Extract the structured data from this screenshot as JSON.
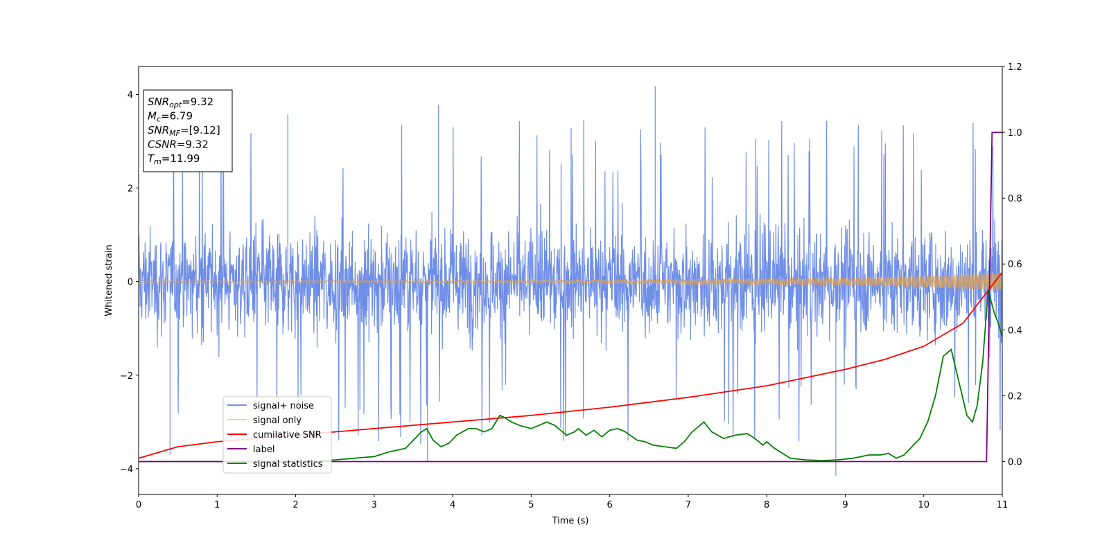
{
  "chart_data": {
    "type": "line",
    "title": "",
    "xlabel": "Time (s)",
    "ylabel": "Whitened strain",
    "xlim": [
      0,
      11
    ],
    "ylim_left": [
      -4.55,
      4.6
    ],
    "ylim_right": [
      -0.1,
      1.2
    ],
    "x_ticks": [
      "0",
      "1",
      "2",
      "3",
      "4",
      "5",
      "6",
      "7",
      "8",
      "9",
      "10",
      "11"
    ],
    "y_ticks_left": [
      "−4",
      "−2",
      "0",
      "2",
      "4"
    ],
    "y_ticks_right": [
      "0.0",
      "0.2",
      "0.4",
      "0.6",
      "0.8",
      "1.0",
      "1.2"
    ],
    "grid": false,
    "legend_position": "lower-left",
    "series": [
      {
        "name": "signal+ noise",
        "axis": "left",
        "color": "#6f8ee8",
        "description_values": "noise band roughly ±2 with spikes to ±3.8",
        "extreme_values": [
          [
            6.58,
            4.18
          ],
          [
            8.88,
            -4.15
          ],
          [
            1.9,
            3.58
          ],
          [
            3.82,
            3.78
          ],
          [
            3.68,
            -3.85
          ],
          [
            0.4,
            -3.7
          ]
        ]
      },
      {
        "name": "signal only",
        "axis": "left",
        "color": "#f5c26b",
        "envelope": [
          [
            0,
            0.02
          ],
          [
            5,
            0.03
          ],
          [
            8,
            0.06
          ],
          [
            9,
            0.08
          ],
          [
            10,
            0.12
          ],
          [
            11,
            0.2
          ]
        ]
      },
      {
        "name": "cumilative SNR",
        "axis": "right",
        "color": "#ff0000",
        "x": [
          0,
          0.5,
          1,
          2,
          3,
          4,
          5,
          6,
          7,
          8,
          9,
          9.5,
          10,
          10.5,
          11
        ],
        "values": [
          0.01,
          0.045,
          0.06,
          0.08,
          0.1,
          0.12,
          0.14,
          0.165,
          0.195,
          0.23,
          0.28,
          0.31,
          0.35,
          0.42,
          0.575
        ]
      },
      {
        "name": "label",
        "axis": "right",
        "color": "#800080",
        "x": [
          0,
          10.8,
          10.87,
          11
        ],
        "values": [
          0,
          0,
          1.0,
          1.0
        ]
      },
      {
        "name": "signal statistics",
        "axis": "right",
        "color": "#008000",
        "x": [
          0,
          2,
          2.5,
          3,
          3.2,
          3.4,
          3.6,
          3.67,
          3.75,
          3.85,
          3.95,
          4.05,
          4.2,
          4.3,
          4.4,
          4.5,
          4.6,
          4.65,
          4.75,
          4.85,
          5.0,
          5.1,
          5.2,
          5.3,
          5.45,
          5.55,
          5.6,
          5.7,
          5.8,
          5.9,
          6.0,
          6.1,
          6.2,
          6.35,
          6.45,
          6.55,
          6.7,
          6.85,
          6.95,
          7.05,
          7.2,
          7.3,
          7.45,
          7.6,
          7.75,
          7.85,
          7.95,
          8.0,
          8.1,
          8.3,
          8.5,
          8.7,
          8.9,
          9.1,
          9.3,
          9.45,
          9.55,
          9.65,
          9.75,
          9.85,
          9.95,
          10.05,
          10.15,
          10.25,
          10.35,
          10.45,
          10.55,
          10.62,
          10.68,
          10.75,
          10.82,
          10.9,
          10.95,
          11.0
        ],
        "values": [
          0.0,
          0.0,
          0.005,
          0.015,
          0.03,
          0.04,
          0.09,
          0.1,
          0.065,
          0.045,
          0.055,
          0.08,
          0.1,
          0.1,
          0.09,
          0.1,
          0.14,
          0.135,
          0.12,
          0.11,
          0.1,
          0.11,
          0.12,
          0.11,
          0.08,
          0.09,
          0.1,
          0.08,
          0.095,
          0.075,
          0.095,
          0.1,
          0.09,
          0.065,
          0.06,
          0.05,
          0.045,
          0.04,
          0.06,
          0.09,
          0.12,
          0.09,
          0.07,
          0.08,
          0.085,
          0.07,
          0.05,
          0.06,
          0.04,
          0.01,
          0.005,
          0.003,
          0.005,
          0.01,
          0.02,
          0.02,
          0.025,
          0.01,
          0.02,
          0.045,
          0.07,
          0.12,
          0.2,
          0.32,
          0.34,
          0.24,
          0.14,
          0.12,
          0.17,
          0.3,
          0.52,
          0.45,
          0.42,
          0.38
        ]
      }
    ],
    "annotation_box": [
      {
        "main": "SNR",
        "sub": "opt",
        "rest": "=9.32"
      },
      {
        "main": "M",
        "sub": "c",
        "rest": "=6.79"
      },
      {
        "main": "SNR",
        "sub": "MF",
        "rest": "=[9.12]"
      },
      {
        "main": "CSNR",
        "sub": "",
        "rest": "=9.32"
      },
      {
        "main": "T",
        "sub": "m",
        "rest": "=11.99"
      }
    ]
  }
}
